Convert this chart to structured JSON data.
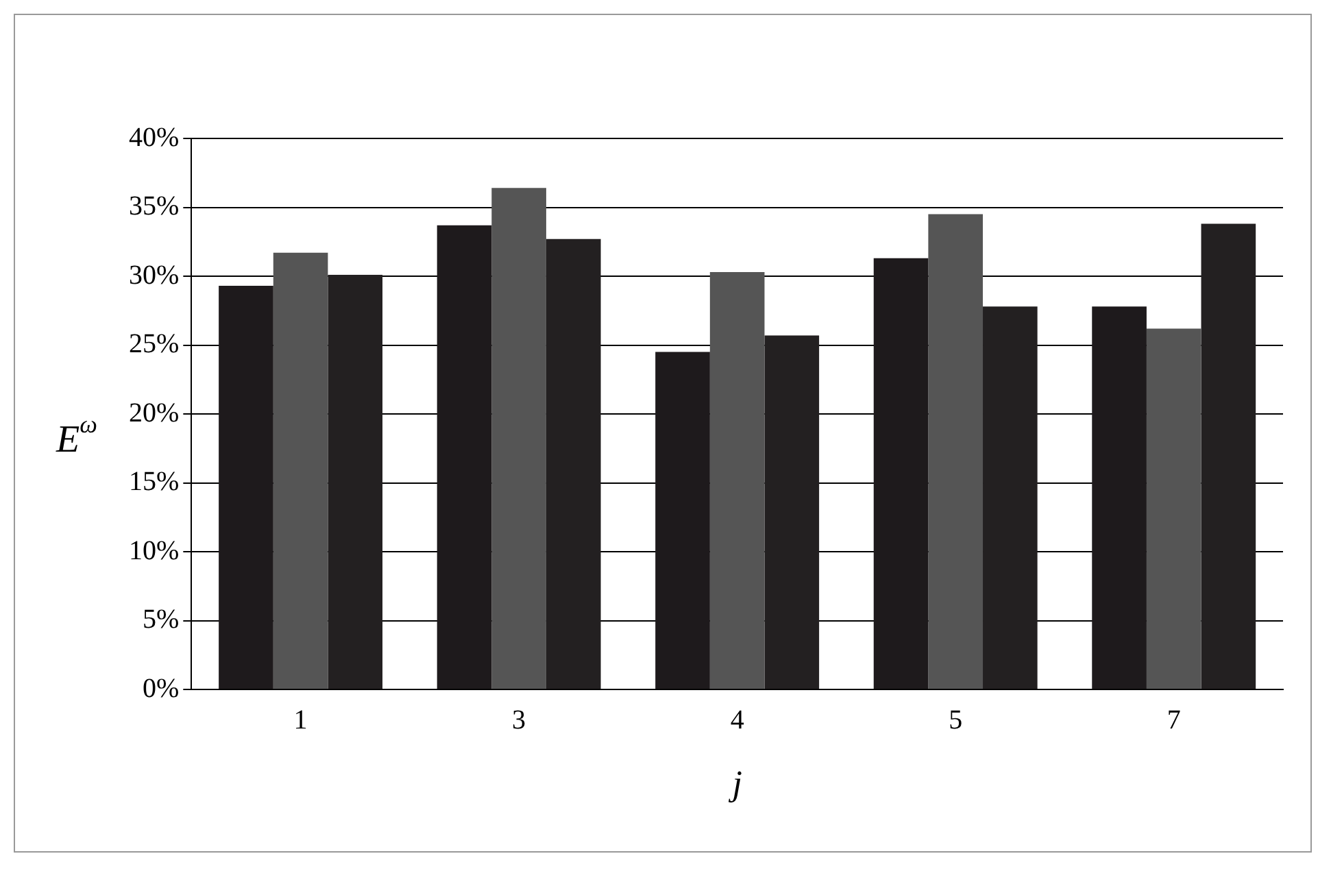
{
  "chart_data": {
    "type": "bar",
    "xlabel": "j",
    "ylabel": "E$^{ω}$",
    "categories": [
      "1",
      "3",
      "4",
      "5",
      "7"
    ],
    "series": [
      {
        "color": "#1e1a1c",
        "values": [
          29.3,
          33.7,
          24.5,
          31.3,
          27.8
        ]
      },
      {
        "color": "#555555",
        "values": [
          31.7,
          36.4,
          30.3,
          34.5,
          26.2
        ]
      },
      {
        "color": "#232021",
        "values": [
          30.1,
          32.7,
          25.7,
          27.8,
          33.8
        ]
      }
    ],
    "ylim": [
      0,
      40
    ],
    "yticks": [
      {
        "value": 0,
        "label": "0%"
      },
      {
        "value": 5,
        "label": "5%"
      },
      {
        "value": 10,
        "label": "10%"
      },
      {
        "value": 15,
        "label": "15%"
      },
      {
        "value": 20,
        "label": "20%"
      },
      {
        "value": 25,
        "label": "25%"
      },
      {
        "value": 30,
        "label": "30%"
      },
      {
        "value": 35,
        "label": "35%"
      },
      {
        "value": 40,
        "label": "40%"
      }
    ],
    "grid": "y"
  }
}
